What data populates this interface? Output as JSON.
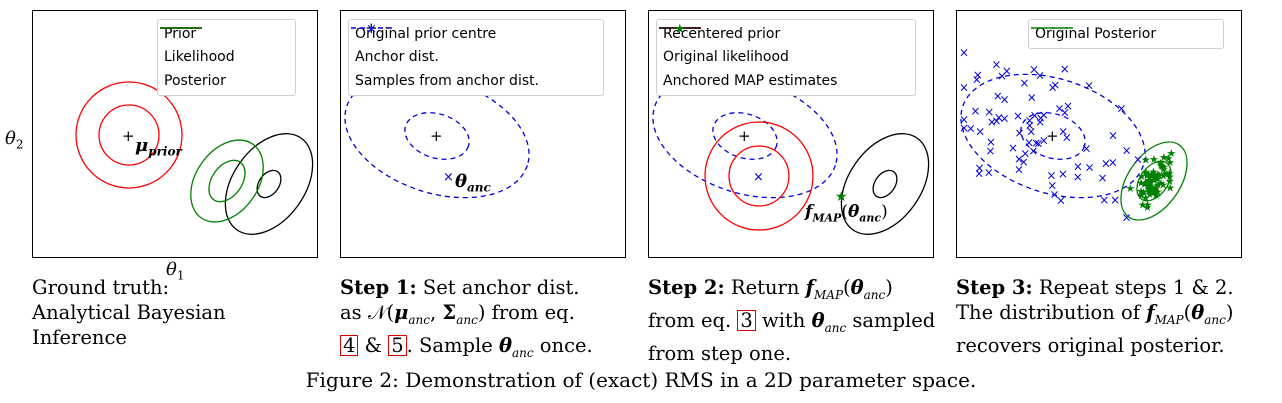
{
  "panels": [
    {
      "legend": [
        "Prior",
        "Likelihood",
        "Posterior"
      ],
      "legend_colors": [
        "#ff0000",
        "#000000",
        "#008000"
      ],
      "annotation": "μprior",
      "caption": [
        "Ground truth:",
        "Analytical Bayesian",
        "Inference"
      ]
    },
    {
      "legend": [
        "Original prior centre",
        "Anchor dist.",
        "Samples from anchor dist."
      ],
      "legend_colors": [
        "#000000",
        "#0000dd",
        "#0000dd"
      ],
      "annotation": "θanc",
      "caption_bold": "Step 1:",
      "caption_lines": [
        "Set anchor dist.",
        "as 𝒩(μanc, Σanc) from eq.",
        "& . Sample θanc once."
      ],
      "refs": [
        "4",
        "5"
      ]
    },
    {
      "legend": [
        "Recentered prior",
        "Original likelihood",
        "Anchored MAP estimates"
      ],
      "legend_colors": [
        "#ff0000",
        "#000000",
        "#008000"
      ],
      "annotation": "fMAP(θanc)",
      "caption_bold": "Step 2:",
      "caption_lines": [
        "Return fMAP(θanc)",
        "from eq.",
        "with θanc sampled",
        "from step one."
      ],
      "refs": [
        "3"
      ]
    },
    {
      "legend": [
        "Original Posterior"
      ],
      "legend_colors": [
        "#008000"
      ],
      "caption_bold": "Step 3:",
      "caption_lines": [
        "Repeat steps 1 & 2.",
        "The distribution of fMAP(θanc)",
        "recovers original posterior."
      ]
    }
  ],
  "axes": {
    "x": "θ1",
    "y": "θ2"
  },
  "figure_caption": "Figure 2: Demonstration of (exact) RMS in a 2D parameter space."
}
